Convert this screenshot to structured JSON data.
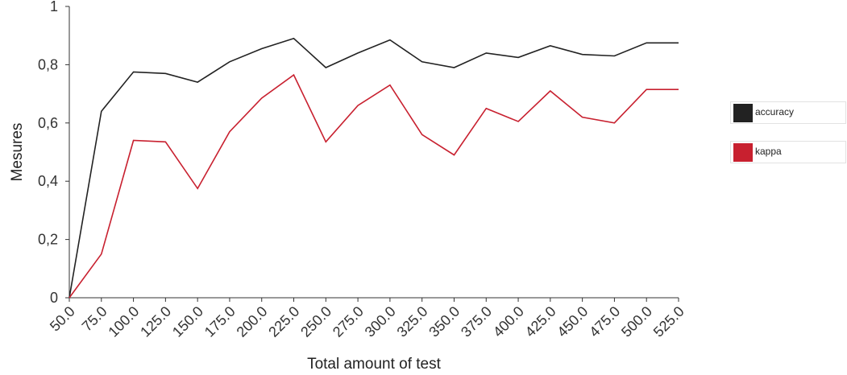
{
  "chart_data": {
    "type": "line",
    "xlabel": "Total amount of test",
    "ylabel": "Mesures",
    "ylim": [
      0,
      1
    ],
    "yticks": [
      "0",
      "0,2",
      "0,4",
      "0,6",
      "0,8",
      "1"
    ],
    "categories": [
      "50.0",
      "75.0",
      "100.0",
      "125.0",
      "150.0",
      "175.0",
      "200.0",
      "225.0",
      "250.0",
      "275.0",
      "300.0",
      "325.0",
      "350.0",
      "375.0",
      "400.0",
      "425.0",
      "450.0",
      "475.0",
      "500.0",
      "525.0"
    ],
    "series": [
      {
        "name": "accuracy",
        "color": "#222222",
        "values": [
          0.0,
          0.64,
          0.775,
          0.77,
          0.74,
          0.81,
          0.855,
          0.89,
          0.79,
          0.84,
          0.885,
          0.81,
          0.79,
          0.84,
          0.825,
          0.865,
          0.835,
          0.83,
          0.875,
          0.875
        ]
      },
      {
        "name": "kappa",
        "color": "#c8202f",
        "values": [
          0.0,
          0.15,
          0.54,
          0.535,
          0.375,
          0.57,
          0.685,
          0.765,
          0.535,
          0.66,
          0.73,
          0.56,
          0.49,
          0.65,
          0.605,
          0.71,
          0.62,
          0.6,
          0.715,
          0.715
        ]
      }
    ],
    "grid": false,
    "legend_position": "right"
  }
}
